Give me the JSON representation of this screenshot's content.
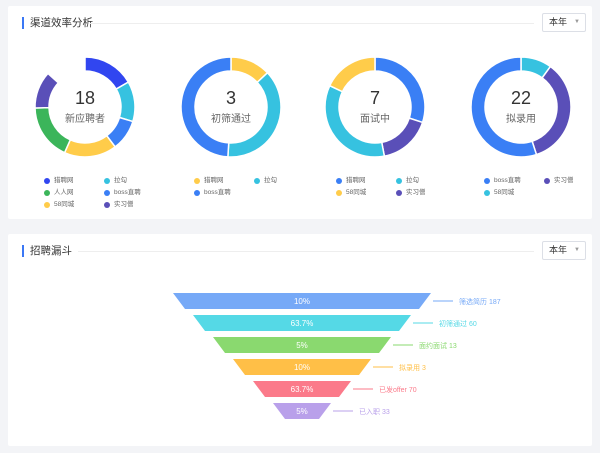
{
  "channel": {
    "title": "渠道效率分析",
    "period": "本年",
    "donuts": [
      {
        "value": "18",
        "label": "新应聘者",
        "segments": [
          {
            "name": "猎聘网",
            "share": 0.167,
            "color": "#3146f0"
          },
          {
            "name": "拉勾",
            "share": 0.13,
            "color": "#36c2e0"
          },
          {
            "name": "boss直聘",
            "share": 0.1,
            "color": "#3a7ff5"
          },
          {
            "name": "58同城",
            "share": 0.17,
            "color": "#ffcc4a"
          },
          {
            "name": "人人网",
            "share": 0.18,
            "color": "#3bb55a"
          },
          {
            "name": "实习僧",
            "share": 0.12,
            "color": "#5a4fb8"
          }
        ],
        "legend": [
          {
            "name": "猎聘网",
            "color": "#3146f0"
          },
          {
            "name": "拉勾",
            "color": "#36c2e0"
          },
          {
            "name": "人人网",
            "color": "#3bb55a"
          },
          {
            "name": "boss直聘",
            "color": "#3a7ff5"
          },
          {
            "name": "58同城",
            "color": "#ffcc4a"
          },
          {
            "name": "实习僧",
            "color": "#5a4fb8"
          }
        ]
      },
      {
        "value": "3",
        "label": "初筛通过",
        "segments": [
          {
            "name": "猎聘网",
            "share": 0.13,
            "color": "#ffcc4a"
          },
          {
            "name": "拉勾",
            "share": 0.38,
            "color": "#36c2e0"
          },
          {
            "name": "boss直聘",
            "share": 0.49,
            "color": "#3a7ff5"
          }
        ],
        "legend": [
          {
            "name": "猎聘网",
            "color": "#ffcc4a"
          },
          {
            "name": "拉勾",
            "color": "#36c2e0"
          },
          {
            "name": "boss直聘",
            "color": "#3a7ff5"
          }
        ]
      },
      {
        "value": "7",
        "label": "面试中",
        "segments": [
          {
            "name": "猎聘网",
            "share": 0.3,
            "color": "#3a7ff5"
          },
          {
            "name": "实习僧",
            "share": 0.17,
            "color": "#5a4fb8"
          },
          {
            "name": "拉勾",
            "share": 0.35,
            "color": "#36c2e0"
          },
          {
            "name": "58同城",
            "share": 0.18,
            "color": "#ffcc4a"
          }
        ],
        "legend": [
          {
            "name": "猎聘网",
            "color": "#3a7ff5"
          },
          {
            "name": "拉勾",
            "color": "#36c2e0"
          },
          {
            "name": "58同城",
            "color": "#ffcc4a"
          },
          {
            "name": "实习僧",
            "color": "#5a4fb8"
          }
        ]
      },
      {
        "value": "22",
        "label": "拟录用",
        "segments": [
          {
            "name": "58同城",
            "share": 0.1,
            "color": "#36c2e0"
          },
          {
            "name": "实习僧",
            "share": 0.35,
            "color": "#5a4fb8"
          },
          {
            "name": "boss直聘",
            "share": 0.55,
            "color": "#3a7ff5"
          }
        ],
        "legend": [
          {
            "name": "boss直聘",
            "color": "#3a7ff5"
          },
          {
            "name": "实习僧",
            "color": "#5a4fb8"
          },
          {
            "name": "58同城",
            "color": "#36c2e0"
          }
        ]
      }
    ]
  },
  "funnel": {
    "title": "招聘漏斗",
    "period": "本年",
    "stages": [
      {
        "pct": "10%",
        "label": "筛选简历 187",
        "color": "#76a9f7"
      },
      {
        "pct": "63.7%",
        "label": "初筛通过 60",
        "color": "#55d9e6"
      },
      {
        "pct": "5%",
        "label": "面约面试 13",
        "color": "#8ad96f"
      },
      {
        "pct": "10%",
        "label": "拟录用 3",
        "color": "#ffbf47"
      },
      {
        "pct": "63.7%",
        "label": "已发offer 70",
        "color": "#fb7a8a"
      },
      {
        "pct": "5%",
        "label": "已入职 33",
        "color": "#b9a0ea"
      }
    ]
  }
}
